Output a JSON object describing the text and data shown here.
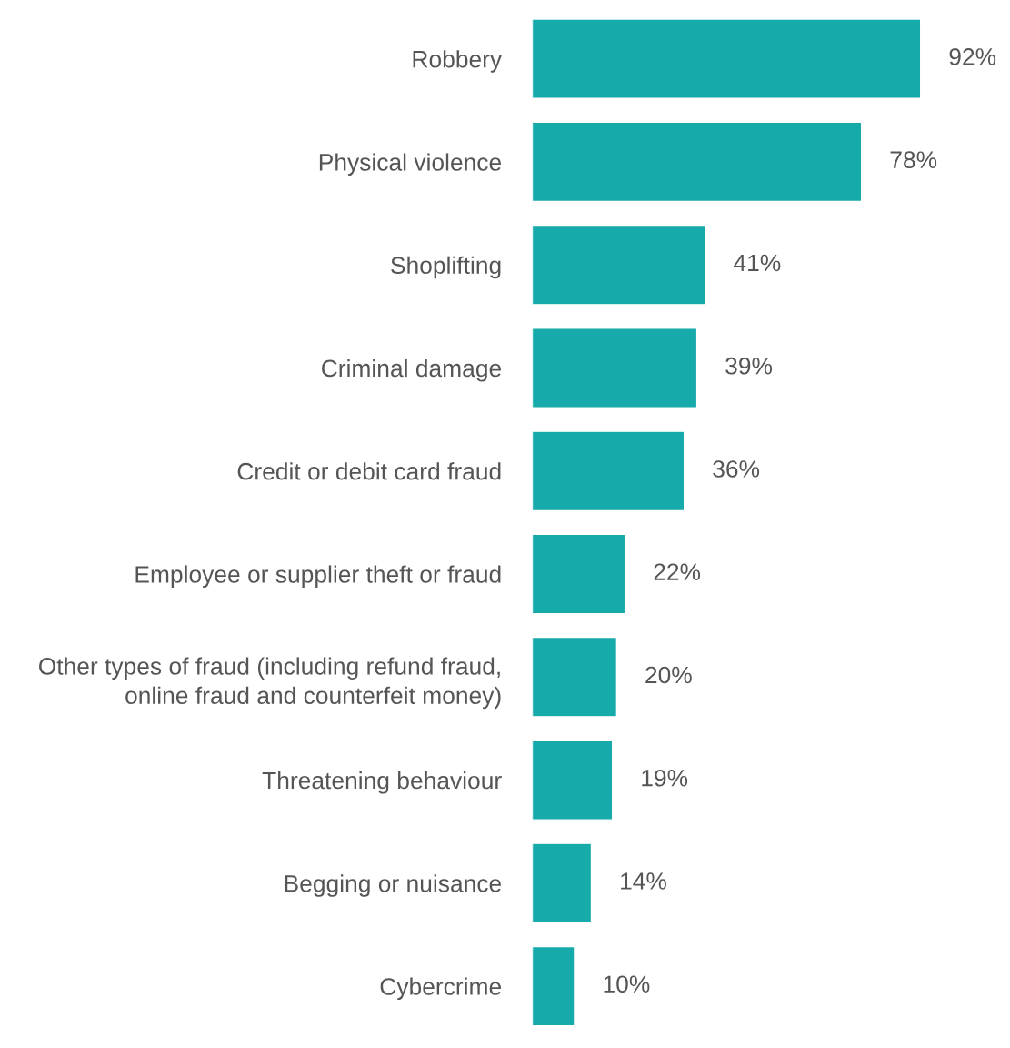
{
  "chart_data": {
    "type": "bar",
    "orientation": "horizontal",
    "categories": [
      "Robbery",
      "Physical violence",
      "Shoplifting",
      "Criminal damage",
      "Credit or debit card fraud",
      "Employee or supplier theft or fraud",
      "Other types of fraud (including refund fraud,\nonline fraud and counterfeit money)",
      "Threatening behaviour",
      "Begging or nuisance",
      "Cybercrime"
    ],
    "values": [
      92,
      78,
      41,
      39,
      36,
      22,
      20,
      19,
      14,
      10
    ],
    "value_labels": [
      "92%",
      "78%",
      "41%",
      "39%",
      "36%",
      "22%",
      "20%",
      "19%",
      "14%",
      "10%"
    ],
    "color": "#16abaa",
    "grid": false
  }
}
